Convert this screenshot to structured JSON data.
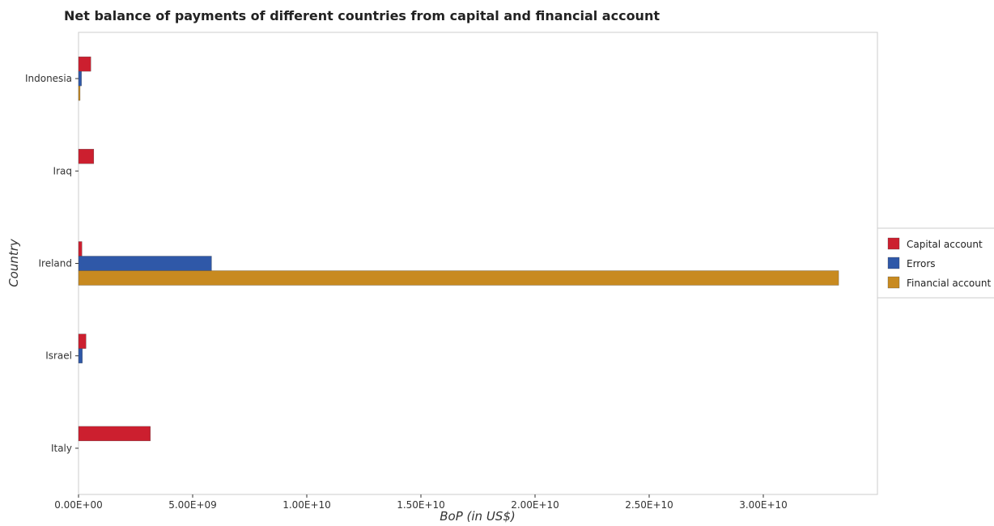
{
  "chart_data": {
    "type": "bar",
    "orientation": "horizontal",
    "title": "Net balance of payments of different countries  from capital and financial account",
    "xlabel": "BoP (in US$)",
    "ylabel": "Country",
    "categories": [
      "Indonesia",
      "Iraq",
      "Ireland",
      "Israel",
      "Italy"
    ],
    "series": [
      {
        "name": "Capital account",
        "color": "#cc1f2f",
        "values": [
          540000000,
          670000000,
          150000000,
          330000000,
          3150000000
        ]
      },
      {
        "name": "Errors",
        "color": "#2f58a8",
        "values": [
          130000000,
          0,
          5830000000,
          170000000,
          0
        ]
      },
      {
        "name": "Financial account",
        "color": "#c88a20",
        "values": [
          70000000,
          0,
          33300000000,
          0,
          0
        ]
      }
    ],
    "xlim": [
      0,
      35000000000
    ],
    "xticks": [
      0,
      5000000000,
      10000000000,
      15000000000,
      20000000000,
      25000000000,
      30000000000
    ],
    "xtick_labels": [
      "0.00E+00",
      "5.00E+09",
      "1.00E+10",
      "1.50E+10",
      "2.00E+10",
      "2.50E+10",
      "3.00E+10"
    ],
    "grid": false,
    "legend_position": "right"
  }
}
